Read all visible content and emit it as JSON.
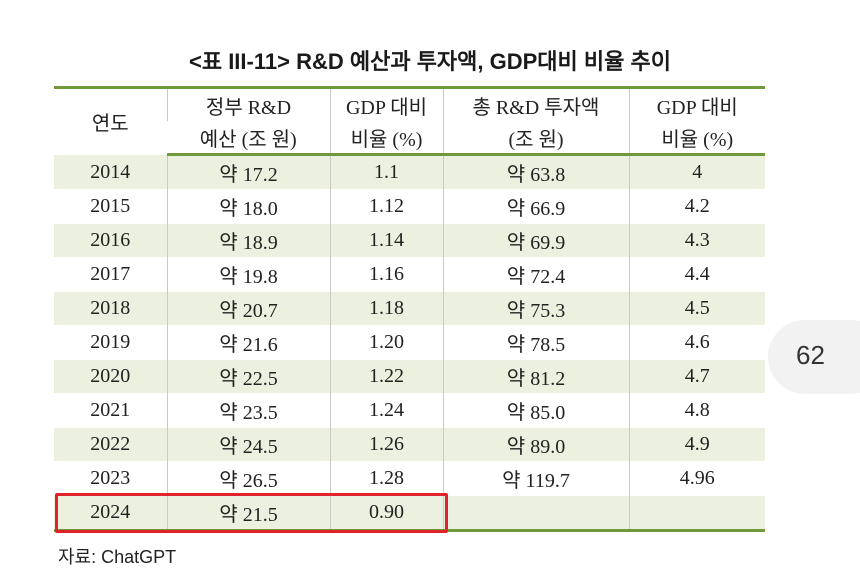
{
  "title": "<표 III-11> R&D 예산과 투자액, GDP대비 비율 추이",
  "table": {
    "headers_line1": [
      "연도",
      "정부 R&D",
      "GDP 대비",
      "총 R&D 투자액",
      "GDP 대비"
    ],
    "headers_line2": [
      "",
      "예산 (조 원)",
      "비율 (%)",
      "(조 원)",
      "비율 (%)"
    ],
    "rows": [
      [
        "2014",
        "약 17.2",
        "1.1",
        "약 63.8",
        "4"
      ],
      [
        "2015",
        "약 18.0",
        "1.12",
        "약 66.9",
        "4.2"
      ],
      [
        "2016",
        "약 18.9",
        "1.14",
        "약 69.9",
        "4.3"
      ],
      [
        "2017",
        "약 19.8",
        "1.16",
        "약 72.4",
        "4.4"
      ],
      [
        "2018",
        "약 20.7",
        "1.18",
        "약 75.3",
        "4.5"
      ],
      [
        "2019",
        "약 21.6",
        "1.20",
        "약 78.5",
        "4.6"
      ],
      [
        "2020",
        "약 22.5",
        "1.22",
        "약 81.2",
        "4.7"
      ],
      [
        "2021",
        "약 23.5",
        "1.24",
        "약 85.0",
        "4.8"
      ],
      [
        "2022",
        "약 24.5",
        "1.26",
        "약 89.0",
        "4.9"
      ],
      [
        "2023",
        "약 26.5",
        "1.28",
        "약 119.7",
        "4.96"
      ],
      [
        "2024",
        "약 21.5",
        "0.90",
        "",
        ""
      ]
    ]
  },
  "source": "자료: ChatGPT",
  "page_number": "62",
  "colors": {
    "rule": "#6f9a3c",
    "row_shade": "#ebf1de",
    "highlight": "#e0222a"
  }
}
